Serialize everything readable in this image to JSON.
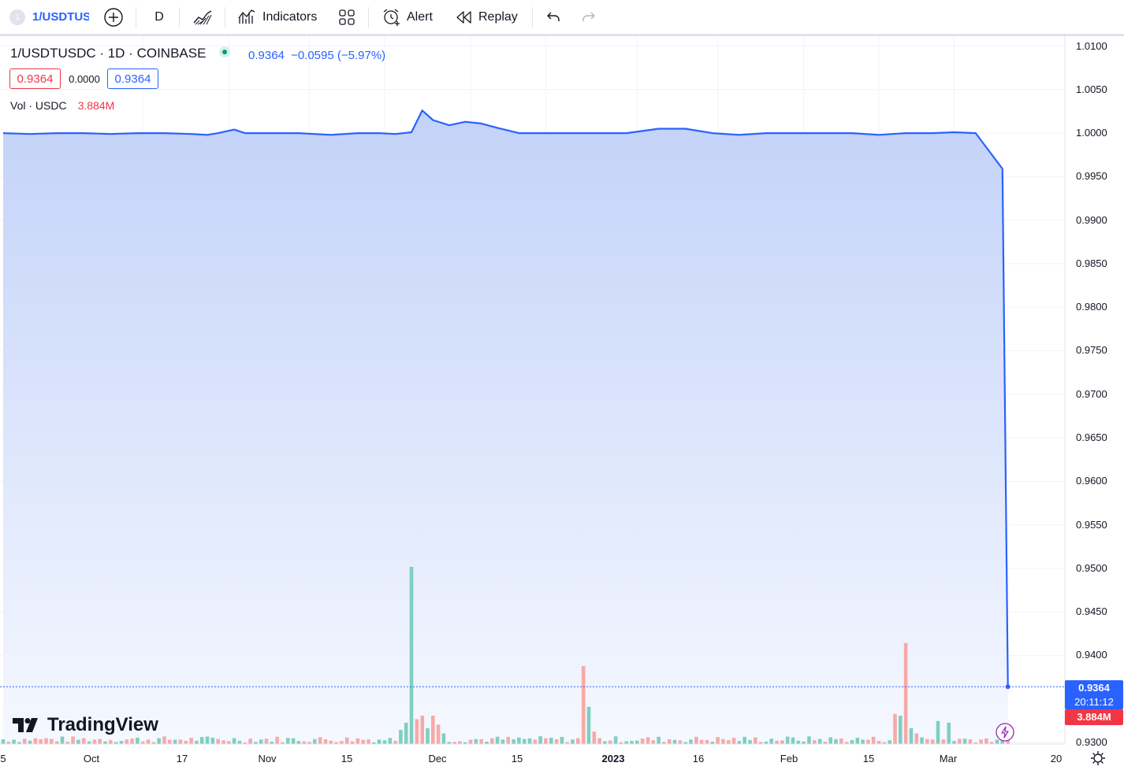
{
  "toolbar": {
    "symbol_badge": "1",
    "symbol": "1/USDTUSDC",
    "interval": "D",
    "indicators_label": "Indicators",
    "alert_label": "Alert",
    "replay_label": "Replay"
  },
  "legend": {
    "title": "1/USDTUSDC · 1D · COINBASE",
    "last_price": "0.9364",
    "change": "−0.0595 (−5.97%)",
    "ohlc_left": "0.9364",
    "ohlc_mid": "0.0000",
    "ohlc_right": "0.9364",
    "volume_label": "Vol · USDC",
    "volume_value": "3.884M"
  },
  "price_axis": {
    "ticks": [
      "1.0100",
      "1.0050",
      "1.0000",
      "0.9950",
      "0.9900",
      "0.9850",
      "0.9800",
      "0.9750",
      "0.9700",
      "0.9650",
      "0.9600",
      "0.9550",
      "0.9500",
      "0.9450",
      "0.9400",
      "0.9300"
    ],
    "current_price": "0.9364",
    "countdown": "20:11:12",
    "current_volume": "3.884M"
  },
  "time_axis": {
    "labels": [
      {
        "text": "5",
        "bold": false
      },
      {
        "text": "Oct",
        "bold": false
      },
      {
        "text": "17",
        "bold": false
      },
      {
        "text": "Nov",
        "bold": false
      },
      {
        "text": "15",
        "bold": false
      },
      {
        "text": "Dec",
        "bold": false
      },
      {
        "text": "15",
        "bold": false
      },
      {
        "text": "2023",
        "bold": true
      },
      {
        "text": "16",
        "bold": false
      },
      {
        "text": "Feb",
        "bold": false
      },
      {
        "text": "15",
        "bold": false
      },
      {
        "text": "Mar",
        "bold": false
      },
      {
        "text": "20",
        "bold": false
      }
    ]
  },
  "branding": {
    "logo_text": "TradingView"
  },
  "colors": {
    "line": "#2962ff",
    "area_top": "#c3d2f8",
    "area_bottom": "#f5f8ff",
    "vol_up": "#7fcfc0",
    "vol_down": "#f7a9a8",
    "grid": "#f0f3fa"
  },
  "chart_data": {
    "type": "area",
    "series": [
      {
        "name": "1/USDTUSDC",
        "points": [
          [
            "2022-09-05",
            1.0
          ],
          [
            "2022-09-10",
            0.9999
          ],
          [
            "2022-09-15",
            1.0
          ],
          [
            "2022-09-20",
            1.0
          ],
          [
            "2022-09-25",
            0.9999
          ],
          [
            "2022-09-30",
            1.0
          ],
          [
            "2022-10-05",
            1.0
          ],
          [
            "2022-10-10",
            0.9999
          ],
          [
            "2022-10-13",
            0.9998
          ],
          [
            "2022-10-15",
            1.0
          ],
          [
            "2022-10-18",
            1.0004
          ],
          [
            "2022-10-20",
            1.0
          ],
          [
            "2022-10-25",
            1.0
          ],
          [
            "2022-10-30",
            1.0
          ],
          [
            "2022-11-05",
            0.9998
          ],
          [
            "2022-11-10",
            1.0
          ],
          [
            "2022-11-14",
            1.0
          ],
          [
            "2022-11-17",
            0.9999
          ],
          [
            "2022-11-20",
            1.0001
          ],
          [
            "2022-11-22",
            1.0026
          ],
          [
            "2022-11-24",
            1.0015
          ],
          [
            "2022-11-27",
            1.0009
          ],
          [
            "2022-11-30",
            1.0013
          ],
          [
            "2022-12-03",
            1.0011
          ],
          [
            "2022-12-06",
            1.0006
          ],
          [
            "2022-12-10",
            1.0
          ],
          [
            "2022-12-15",
            1.0
          ],
          [
            "2022-12-20",
            1.0
          ],
          [
            "2022-12-25",
            1.0
          ],
          [
            "2022-12-30",
            1.0
          ],
          [
            "2023-01-05",
            1.0005
          ],
          [
            "2023-01-10",
            1.0005
          ],
          [
            "2023-01-15",
            1.0
          ],
          [
            "2023-01-20",
            0.9998
          ],
          [
            "2023-01-25",
            1.0
          ],
          [
            "2023-01-30",
            1.0
          ],
          [
            "2023-02-05",
            1.0
          ],
          [
            "2023-02-10",
            1.0
          ],
          [
            "2023-02-15",
            0.9998
          ],
          [
            "2023-02-20",
            1.0
          ],
          [
            "2023-02-25",
            1.0
          ],
          [
            "2023-03-01",
            1.0001
          ],
          [
            "2023-03-05",
            1.0
          ],
          [
            "2023-03-10",
            0.9959
          ],
          [
            "2023-03-11",
            0.9364
          ]
        ]
      }
    ],
    "volume": {
      "name": "Vol · USDC",
      "bars": [
        [
          "2022-11-18",
          0.08,
          "up"
        ],
        [
          "2022-11-19",
          0.12,
          "up"
        ],
        [
          "2022-11-20",
          1.0,
          "up"
        ],
        [
          "2022-11-21",
          0.14,
          "down"
        ],
        [
          "2022-11-22",
          0.16,
          "down"
        ],
        [
          "2022-11-23",
          0.09,
          "up"
        ],
        [
          "2022-11-24",
          0.16,
          "down"
        ],
        [
          "2022-11-25",
          0.11,
          "down"
        ],
        [
          "2022-11-26",
          0.06,
          "up"
        ],
        [
          "2022-12-22",
          0.44,
          "down"
        ],
        [
          "2022-12-23",
          0.21,
          "up"
        ],
        [
          "2022-12-24",
          0.07,
          "down"
        ],
        [
          "2023-02-18",
          0.17,
          "down"
        ],
        [
          "2023-02-19",
          0.16,
          "up"
        ],
        [
          "2023-02-20",
          0.57,
          "down"
        ],
        [
          "2023-02-21",
          0.09,
          "up"
        ],
        [
          "2023-02-22",
          0.06,
          "down"
        ],
        [
          "2023-02-26",
          0.13,
          "up"
        ],
        [
          "2023-02-28",
          0.12,
          "up"
        ],
        [
          "2023-03-11",
          0.06,
          "down"
        ]
      ]
    },
    "y_axis": {
      "scale": "linear",
      "min": 0.929,
      "max": 1.011,
      "grid": true
    },
    "x_axis": {
      "start": "2022-09-05",
      "end": "2023-03-20"
    }
  }
}
